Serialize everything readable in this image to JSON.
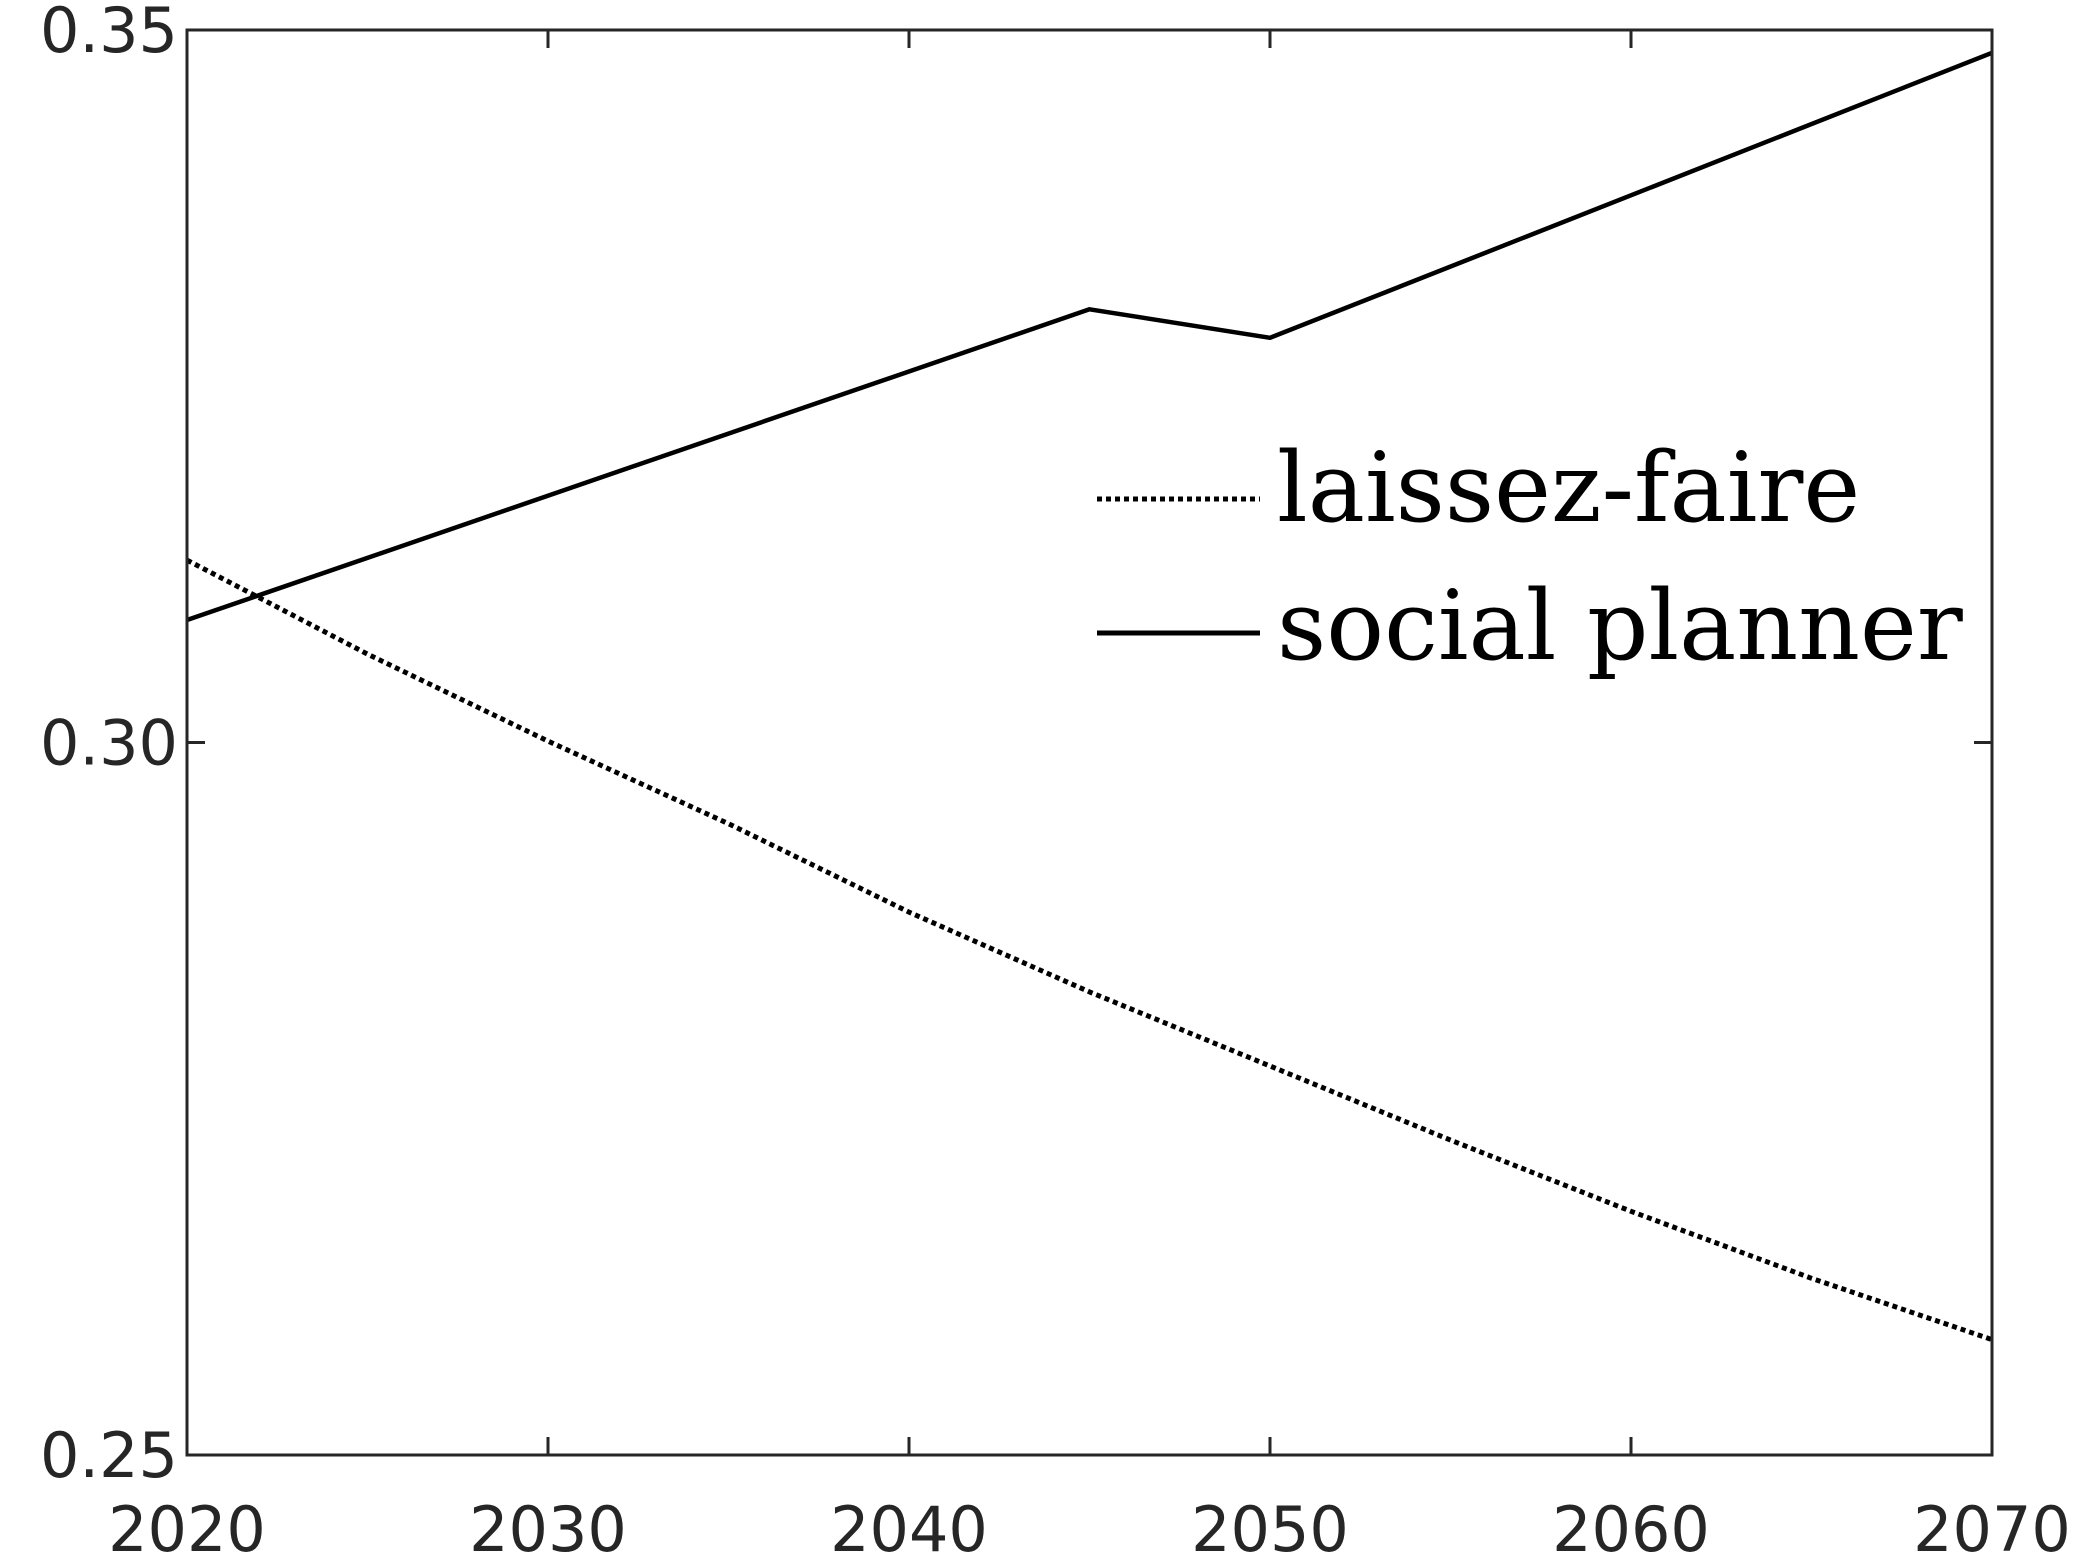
{
  "chart_data": {
    "type": "line",
    "title": "",
    "xlabel": "",
    "ylabel": "",
    "xlim": [
      2020,
      2070
    ],
    "ylim": [
      0.25,
      0.35
    ],
    "x_ticks": [
      2020,
      2030,
      2040,
      2050,
      2060,
      2070
    ],
    "x_tick_labels": [
      "2020",
      "2030",
      "2040",
      "2050",
      "2060",
      "2070"
    ],
    "y_ticks": [
      0.25,
      0.3,
      0.35
    ],
    "y_tick_labels": [
      "0.25",
      "0.30",
      "0.35"
    ],
    "grid": false,
    "legend": {
      "position": "right-center",
      "entries": [
        {
          "label": "laissez-faire",
          "style": "dotted"
        },
        {
          "label": "social planner",
          "style": "solid"
        }
      ]
    },
    "series": [
      {
        "name": "laissez-faire",
        "style": "dotted",
        "color": "#000000",
        "x": [
          2020,
          2025,
          2030,
          2035,
          2040,
          2045,
          2050,
          2055,
          2060,
          2065,
          2070
        ],
        "y": [
          0.3128,
          0.3062,
          0.3001,
          0.2943,
          0.2881,
          0.2825,
          0.2773,
          0.2721,
          0.2671,
          0.2624,
          0.2581
        ]
      },
      {
        "name": "social planner",
        "style": "solid",
        "color": "#000000",
        "x": [
          2020,
          2045,
          2050,
          2070
        ],
        "y": [
          0.3086,
          0.3304,
          0.3284,
          0.3484
        ]
      }
    ]
  }
}
